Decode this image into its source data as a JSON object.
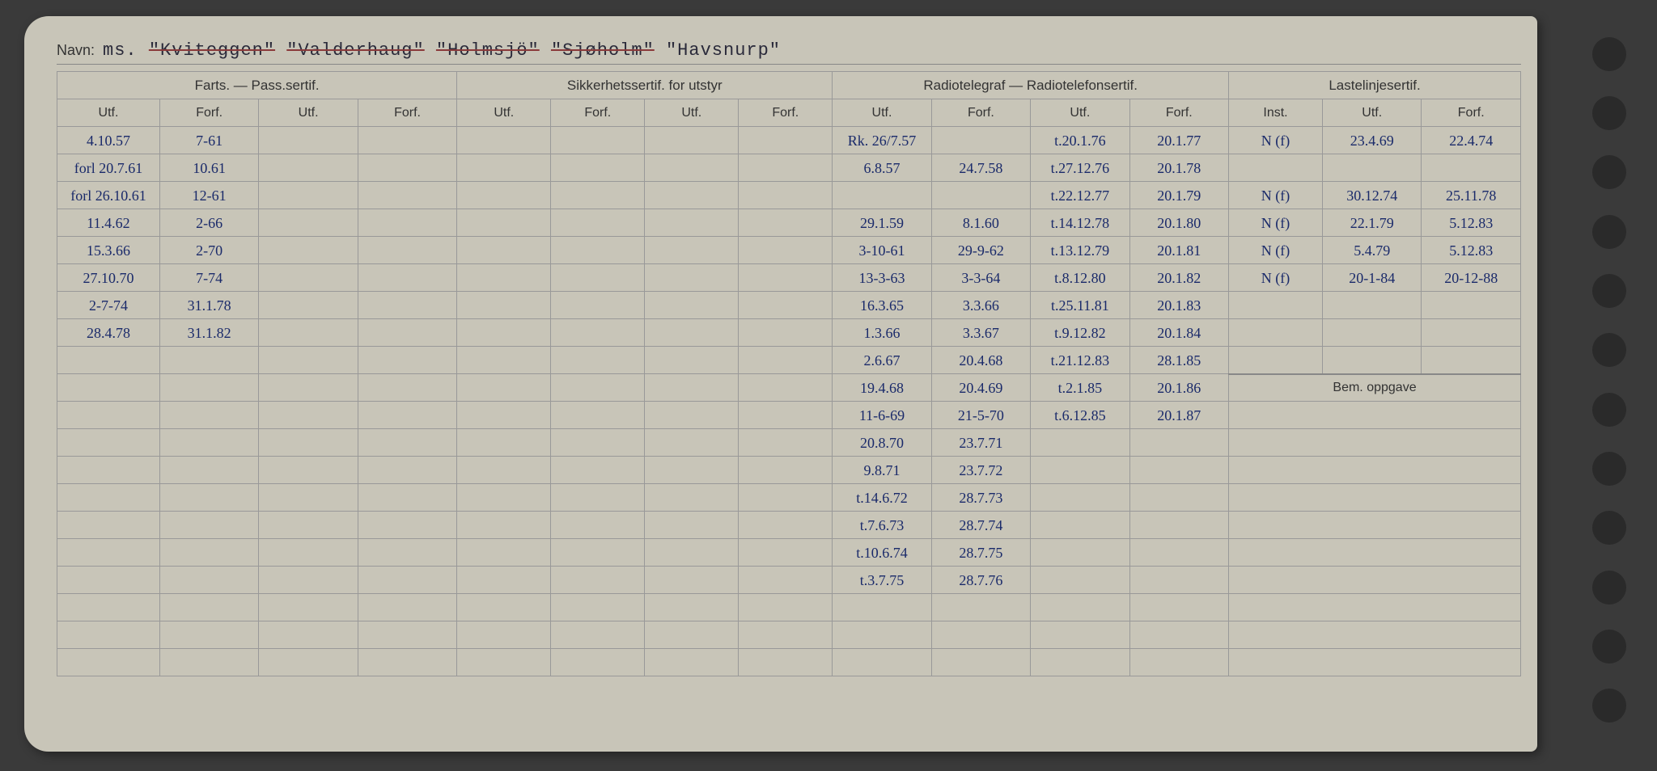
{
  "colors": {
    "card_bg": "#c8c5b8",
    "page_bg": "#3a3a3a",
    "ink_blue": "#1a2a6a",
    "ink_black": "#2a2a2a",
    "line": "#999",
    "strike": "#8a3a3a"
  },
  "header": {
    "navn_label": "Navn:",
    "ms": "ms.",
    "names": [
      {
        "text": "\"Kviteggen\"",
        "struck": true
      },
      {
        "text": "\"Valderhaug\"",
        "struck": true
      },
      {
        "text": "\"Holmsjö\"",
        "struck": true
      },
      {
        "text": "\"Sjøholm\"",
        "struck": true
      },
      {
        "text": "\"Havsnurp\"",
        "struck": false
      }
    ]
  },
  "sections": {
    "farts": "Farts. — Pass.sertif.",
    "sikker": "Sikkerhetssertif. for utstyr",
    "radio": "Radiotelegraf — Radiotelefonsertif.",
    "laste": "Lastelinjesertif.",
    "bem": "Bem. oppgave"
  },
  "subheaders": {
    "utf": "Utf.",
    "forf": "Forf.",
    "inst": "Inst."
  },
  "farts_rows": [
    {
      "utf": "4.10.57",
      "forf": "7-61"
    },
    {
      "utf": "forl 20.7.61",
      "forf": "10.61"
    },
    {
      "utf": "forl 26.10.61",
      "forf": "12-61"
    },
    {
      "utf": "11.4.62",
      "forf": "2-66"
    },
    {
      "utf": "15.3.66",
      "forf": "2-70"
    },
    {
      "utf": "27.10.70",
      "forf": "7-74"
    },
    {
      "utf": "2-7-74",
      "forf": "31.1.78"
    },
    {
      "utf": "28.4.78",
      "forf": "31.1.82"
    }
  ],
  "radio1_rows": [
    {
      "utf": "Rk. 26/7.57",
      "forf": ""
    },
    {
      "utf": "6.8.57",
      "forf": "24.7.58"
    },
    {
      "utf": "",
      "forf": ""
    },
    {
      "utf": "29.1.59",
      "forf": "8.1.60"
    },
    {
      "utf": "3-10-61",
      "forf": "29-9-62"
    },
    {
      "utf": "13-3-63",
      "forf": "3-3-64"
    },
    {
      "utf": "16.3.65",
      "forf": "3.3.66"
    },
    {
      "utf": "1.3.66",
      "forf": "3.3.67"
    },
    {
      "utf": "2.6.67",
      "forf": "20.4.68"
    },
    {
      "utf": "19.4.68",
      "forf": "20.4.69"
    },
    {
      "utf": "11-6-69",
      "forf": "21-5-70"
    },
    {
      "utf": "20.8.70",
      "forf": "23.7.71"
    },
    {
      "utf": "9.8.71",
      "forf": "23.7.72"
    },
    {
      "utf": "t.14.6.72",
      "forf": "28.7.73"
    },
    {
      "utf": "t.7.6.73",
      "forf": "28.7.74"
    },
    {
      "utf": "t.10.6.74",
      "forf": "28.7.75"
    },
    {
      "utf": "t.3.7.75",
      "forf": "28.7.76"
    }
  ],
  "radio2_rows": [
    {
      "utf": "t.20.1.76",
      "forf": "20.1.77"
    },
    {
      "utf": "t.27.12.76",
      "forf": "20.1.78"
    },
    {
      "utf": "t.22.12.77",
      "forf": "20.1.79"
    },
    {
      "utf": "t.14.12.78",
      "forf": "20.1.80"
    },
    {
      "utf": "t.13.12.79",
      "forf": "20.1.81"
    },
    {
      "utf": "t.8.12.80",
      "forf": "20.1.82"
    },
    {
      "utf": "t.25.11.81",
      "forf": "20.1.83"
    },
    {
      "utf": "t.9.12.82",
      "forf": "20.1.84"
    },
    {
      "utf": "t.21.12.83",
      "forf": "28.1.85"
    },
    {
      "utf": "t.2.1.85",
      "forf": "20.1.86"
    },
    {
      "utf": "t.6.12.85",
      "forf": "20.1.87"
    }
  ],
  "laste_rows": [
    {
      "inst": "N (f)",
      "utf": "23.4.69",
      "forf": "22.4.74"
    },
    {
      "inst": "",
      "utf": "",
      "forf": ""
    },
    {
      "inst": "N (f)",
      "utf": "30.12.74",
      "forf": "25.11.78"
    },
    {
      "inst": "N (f)",
      "utf": "22.1.79",
      "forf": "5.12.83"
    },
    {
      "inst": "N (f)",
      "utf": "5.4.79",
      "forf": "5.12.83"
    },
    {
      "inst": "N (f)",
      "utf": "20-1-84",
      "forf": "20-12-88"
    }
  ],
  "hole_count": 12
}
